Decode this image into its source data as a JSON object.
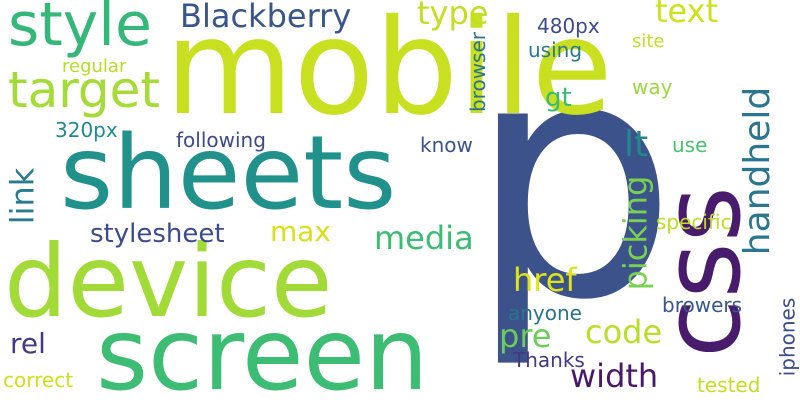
{
  "words": {
    "p": {
      "text": "p",
      "color": "#3b528b"
    },
    "mobile": {
      "text": "mobile",
      "color": "#c8e020"
    },
    "device": {
      "text": "device",
      "color": "#a2da37"
    },
    "sheets": {
      "text": "sheets",
      "color": "#21918c"
    },
    "screen": {
      "text": "screen",
      "color": "#3dbc74"
    },
    "css": {
      "text": "css",
      "color": "#481b6d"
    },
    "style": {
      "text": "style",
      "color": "#35b779"
    },
    "target": {
      "text": "target",
      "color": "#a5db36"
    },
    "blackberry": {
      "text": "Blackberry",
      "color": "#39568c"
    },
    "handheld": {
      "text": "handheld",
      "color": "#2a768e"
    },
    "type": {
      "text": "type",
      "color": "#c2df23"
    },
    "text": {
      "text": "text",
      "color": "#cde11d"
    },
    "px480": {
      "text": "480px",
      "color": "#3e4a89"
    },
    "using": {
      "text": "using",
      "color": "#2a788e"
    },
    "site": {
      "text": "site",
      "color": "#c0df25"
    },
    "browser": {
      "text": "browser",
      "color": "#2c728e"
    },
    "way": {
      "text": "way",
      "color": "#9bd93c"
    },
    "regular": {
      "text": "regular",
      "color": "#b5de2b"
    },
    "gt": {
      "text": "gt",
      "color": "#3aba76"
    },
    "px320": {
      "text": "320px",
      "color": "#23898e"
    },
    "following": {
      "text": "following",
      "color": "#3e4989"
    },
    "know": {
      "text": "know",
      "color": "#3b528b"
    },
    "lt": {
      "text": "lt",
      "color": "#24868e"
    },
    "use": {
      "text": "use",
      "color": "#4ac16d"
    },
    "link": {
      "text": "link",
      "color": "#287c8e"
    },
    "picking": {
      "text": "picking",
      "color": "#7ad151"
    },
    "specific": {
      "text": "specific",
      "color": "#bddf26"
    },
    "stylesheet": {
      "text": "stylesheet",
      "color": "#3e4a89"
    },
    "max": {
      "text": "max",
      "color": "#d5e21a"
    },
    "media": {
      "text": "media",
      "color": "#3dbc74"
    },
    "href": {
      "text": "href",
      "color": "#e0e318"
    },
    "rel": {
      "text": "rel",
      "color": "#443a83"
    },
    "pre": {
      "text": "pre",
      "color": "#6ccd5a"
    },
    "code": {
      "text": "code",
      "color": "#b8de29"
    },
    "anyone": {
      "text": "anyone",
      "color": "#2c728e"
    },
    "browers": {
      "text": "browers",
      "color": "#3a548c"
    },
    "width": {
      "text": "width",
      "color": "#48186a"
    },
    "thanks": {
      "text": "Thanks",
      "color": "#453882"
    },
    "iphones": {
      "text": "iphones",
      "color": "#3e4c8a"
    },
    "correct": {
      "text": "correct",
      "color": "#cde11d"
    },
    "tested": {
      "text": "tested",
      "color": "#c2df23"
    }
  }
}
